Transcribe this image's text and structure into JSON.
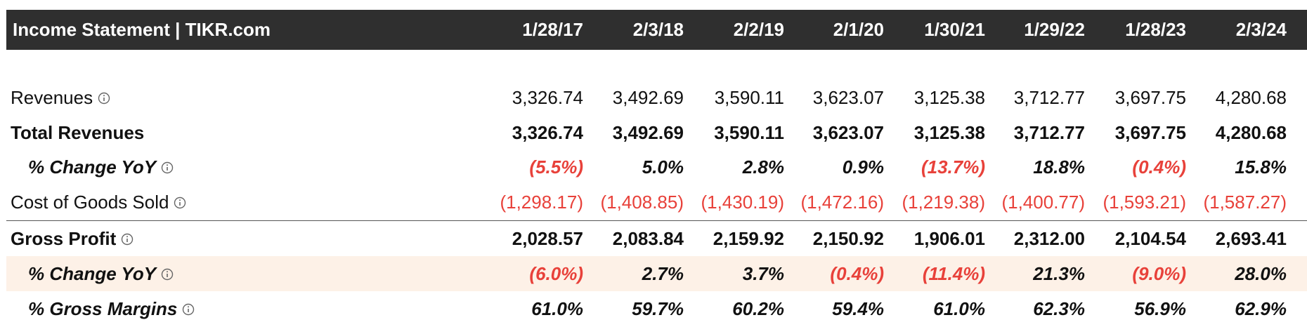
{
  "header": {
    "title": "Income Statement | TIKR.com",
    "columns": [
      "1/28/17",
      "2/3/18",
      "2/2/19",
      "2/1/20",
      "1/30/21",
      "1/29/22",
      "1/28/23",
      "2/3/24"
    ]
  },
  "table": {
    "rows": [
      {
        "label": "Revenues",
        "values": [
          "3,326.74",
          "3,492.69",
          "3,590.11",
          "3,623.07",
          "3,125.38",
          "3,712.77",
          "3,697.75",
          "4,280.68"
        ]
      },
      {
        "label": "Total Revenues",
        "values": [
          "3,326.74",
          "3,492.69",
          "3,590.11",
          "3,623.07",
          "3,125.38",
          "3,712.77",
          "3,697.75",
          "4,280.68"
        ]
      },
      {
        "label": "% Change YoY",
        "values": [
          "(5.5%)",
          "5.0%",
          "2.8%",
          "0.9%",
          "(13.7%)",
          "18.8%",
          "(0.4%)",
          "15.8%"
        ]
      },
      {
        "label": "Cost of Goods Sold",
        "values": [
          "(1,298.17)",
          "(1,408.85)",
          "(1,430.19)",
          "(1,472.16)",
          "(1,219.38)",
          "(1,400.77)",
          "(1,593.21)",
          "(1,587.27)"
        ]
      },
      {
        "label": "Gross Profit",
        "values": [
          "2,028.57",
          "2,083.84",
          "2,159.92",
          "2,150.92",
          "1,906.01",
          "2,312.00",
          "2,104.54",
          "2,693.41"
        ]
      },
      {
        "label": "% Change YoY",
        "values": [
          "(6.0%)",
          "2.7%",
          "3.7%",
          "(0.4%)",
          "(11.4%)",
          "21.3%",
          "(9.0%)",
          "28.0%"
        ]
      },
      {
        "label": "% Gross Margins",
        "values": [
          "61.0%",
          "59.7%",
          "60.2%",
          "59.4%",
          "61.0%",
          "62.3%",
          "56.9%",
          "62.9%"
        ]
      }
    ]
  }
}
